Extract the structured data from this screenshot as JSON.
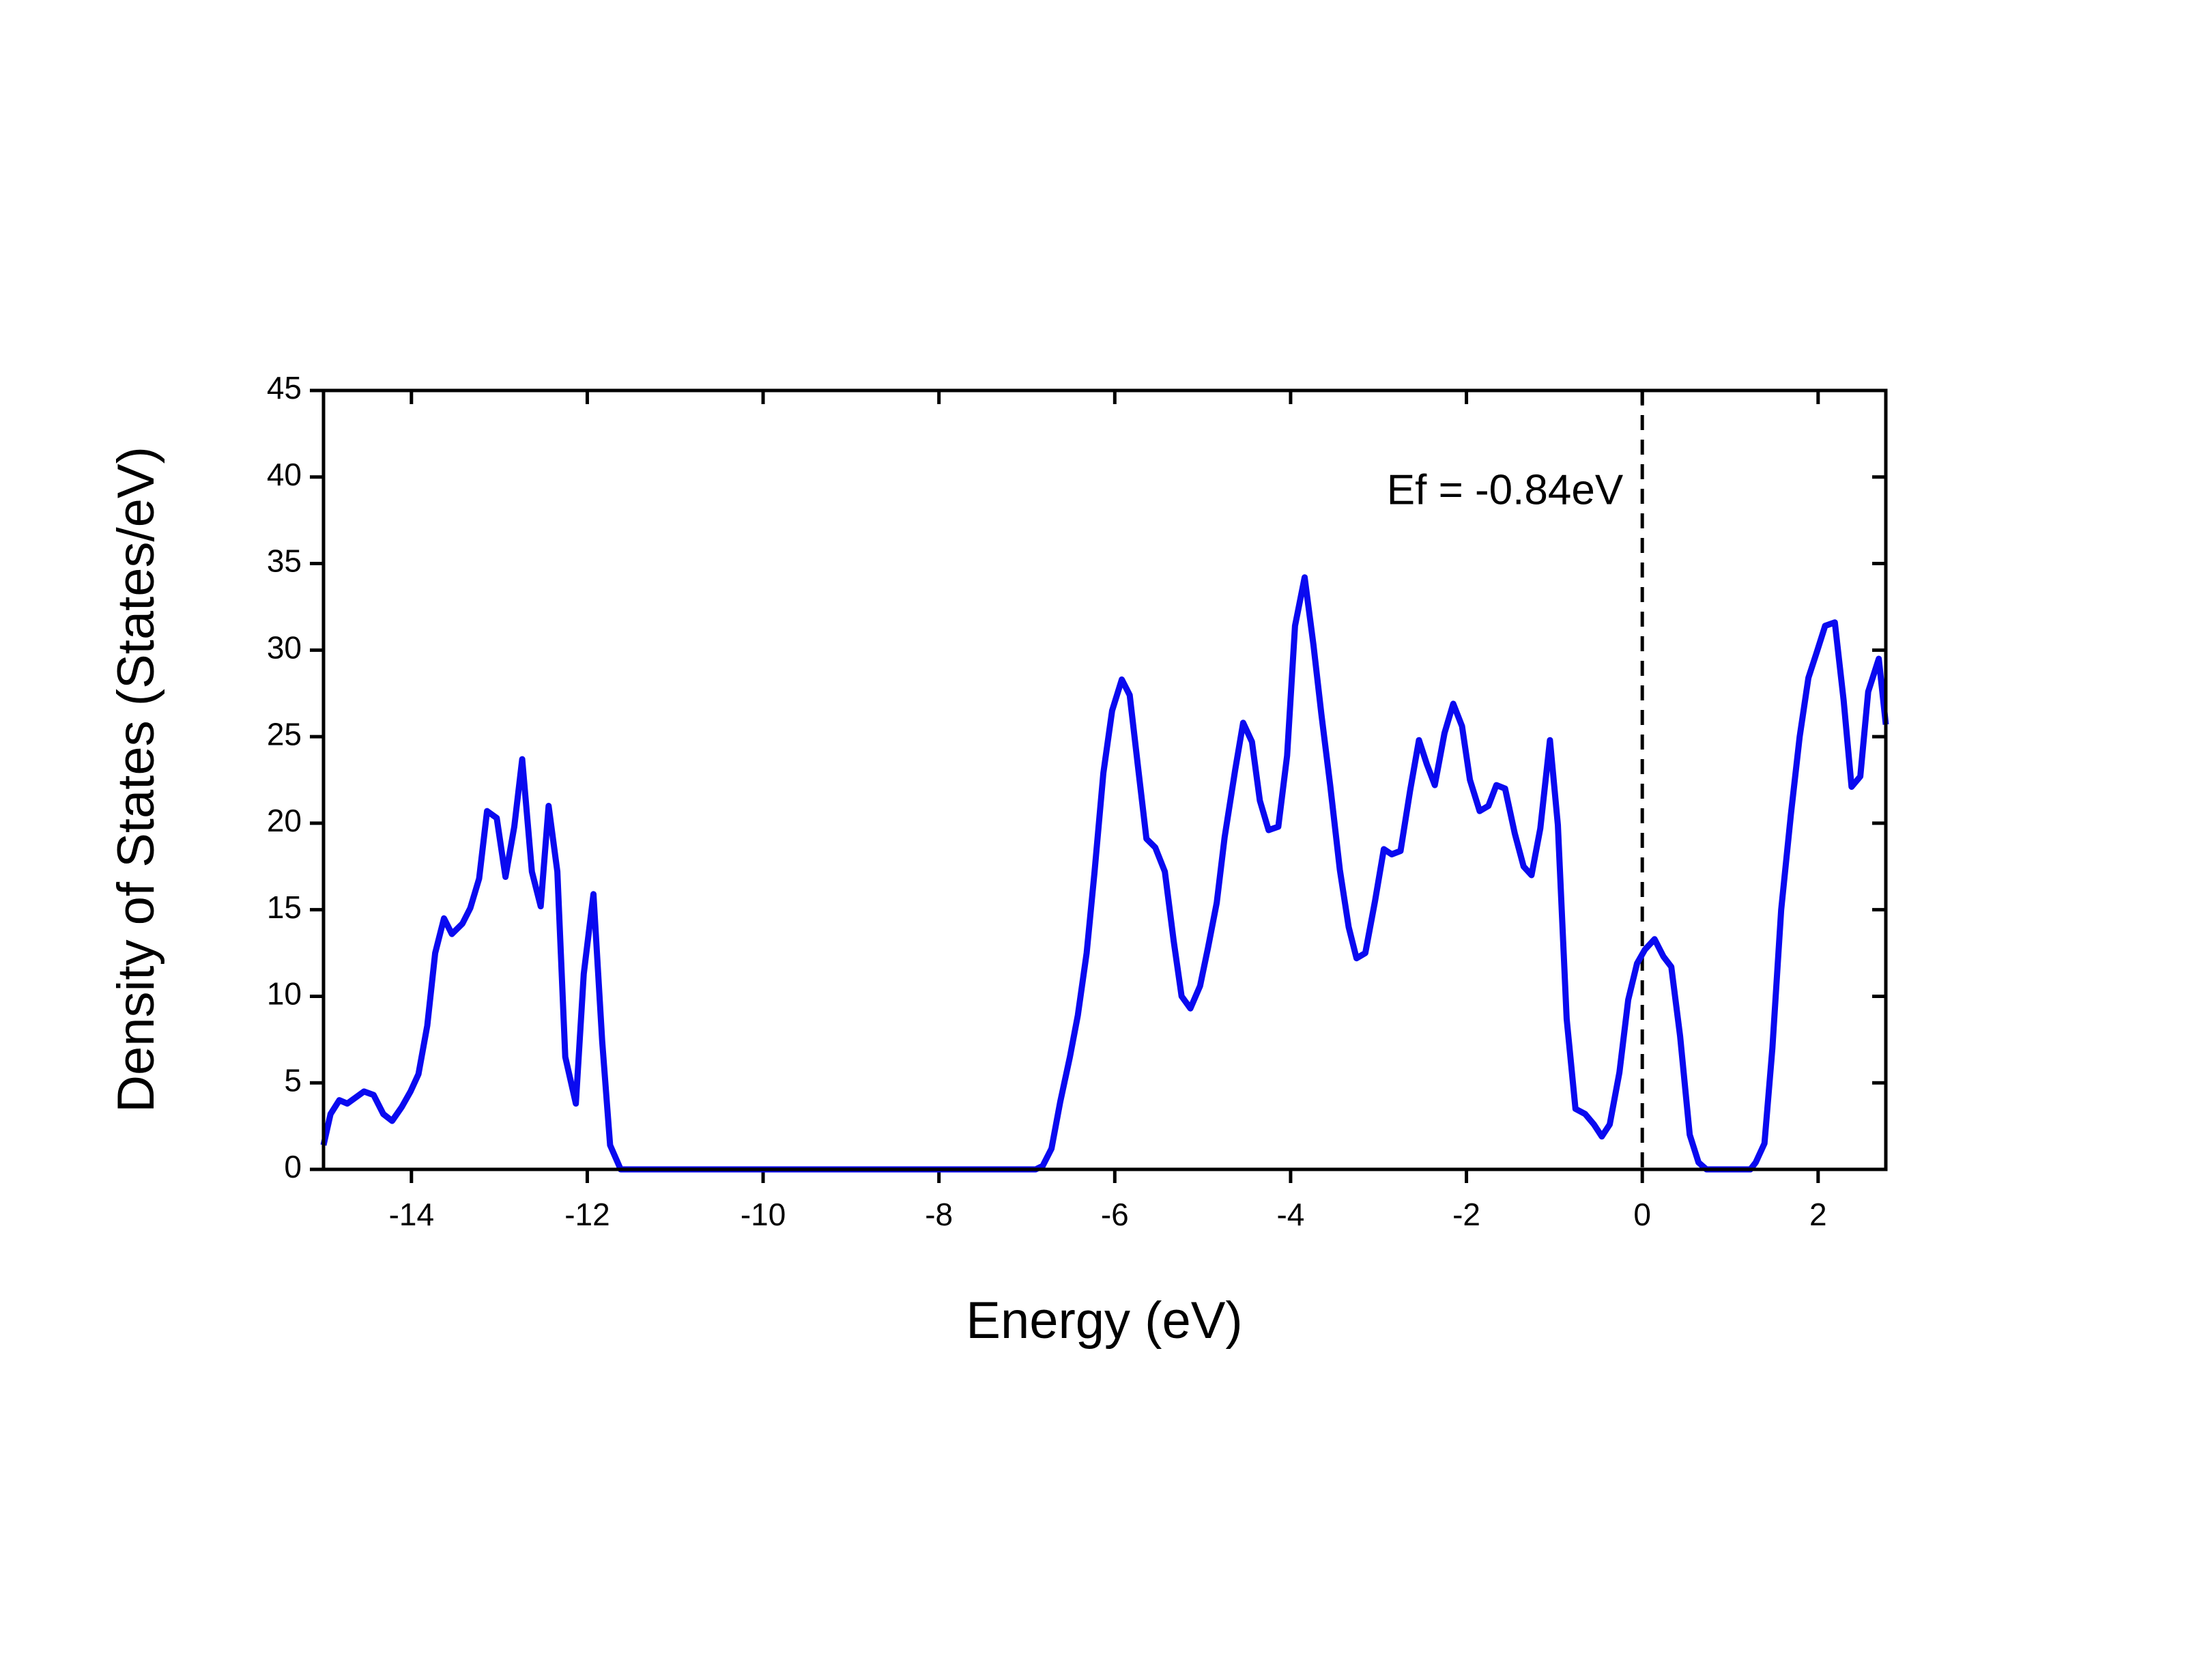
{
  "chart_data": {
    "type": "line",
    "x_label": "Energy (eV)",
    "y_label": "Density of States (States/eV)",
    "annotation": "Ef = -0.84eV",
    "reference_line_x": 0,
    "color": "#0a0af0",
    "x": [
      -15,
      -14.92,
      -14.82,
      -14.73,
      -14.54,
      -14.43,
      -14.32,
      -14.22,
      -14.11,
      -14.01,
      -13.92,
      -13.82,
      -13.73,
      -13.63,
      -13.54,
      -13.42,
      -13.33,
      -13.23,
      -13.14,
      -13.03,
      -12.93,
      -12.83,
      -12.74,
      -12.63,
      -12.53,
      -12.44,
      -12.34,
      -12.25,
      -12.13,
      -12.04,
      -11.93,
      -11.83,
      -11.74,
      -11.62,
      -6.9,
      -6.82,
      -6.72,
      -6.62,
      -6.51,
      -6.42,
      -6.32,
      -6.23,
      -6.13,
      -6.03,
      -5.92,
      -5.83,
      -5.73,
      -5.64,
      -5.54,
      -5.43,
      -5.33,
      -5.24,
      -5.14,
      -5.03,
      -4.94,
      -4.84,
      -4.75,
      -4.63,
      -4.54,
      -4.44,
      -4.35,
      -4.25,
      -4.14,
      -4.04,
      -3.95,
      -3.84,
      -3.74,
      -3.65,
      -3.55,
      -3.44,
      -3.34,
      -3.25,
      -3.15,
      -3.04,
      -2.94,
      -2.85,
      -2.75,
      -2.64,
      -2.54,
      -2.45,
      -2.36,
      -2.25,
      -2.15,
      -2.05,
      -1.96,
      -1.85,
      -1.75,
      -1.66,
      -1.56,
      -1.45,
      -1.35,
      -1.26,
      -1.16,
      -1.05,
      -0.96,
      -0.86,
      -0.76,
      -0.65,
      -0.55,
      -0.46,
      -0.37,
      -0.26,
      -0.16,
      -0.06,
      0.03,
      0.14,
      0.24,
      0.33,
      0.43,
      0.54,
      0.64,
      0.73,
      1.23,
      1.29,
      1.39,
      1.48,
      1.58,
      1.69,
      1.79,
      1.89,
      1.98,
      2.08,
      2.19,
      2.29,
      2.38,
      2.48,
      2.57,
      2.69,
      2.77
    ],
    "values": [
      1.4,
      3.2,
      4.0,
      3.8,
      4.5,
      4.3,
      3.2,
      2.8,
      3.6,
      4.5,
      5.5,
      8.3,
      12.5,
      14.5,
      13.6,
      14.2,
      15.1,
      16.8,
      20.7,
      20.3,
      16.9,
      19.8,
      23.7,
      17.2,
      15.2,
      21.0,
      17.2,
      6.5,
      3.8,
      11.3,
      15.9,
      7.4,
      1.4,
      0,
      0,
      0.2,
      1.2,
      3.9,
      6.5,
      8.9,
      12.5,
      17.2,
      22.9,
      26.5,
      28.3,
      27.4,
      23.0,
      19.1,
      18.6,
      17.2,
      13.2,
      10.0,
      9.3,
      10.6,
      12.8,
      15.4,
      19.2,
      23.1,
      25.8,
      24.7,
      21.3,
      19.6,
      19.8,
      23.9,
      31.4,
      34.2,
      30.3,
      26.3,
      22.2,
      17.3,
      14.0,
      12.2,
      12.5,
      15.5,
      18.5,
      18.2,
      18.4,
      21.9,
      24.8,
      23.4,
      22.2,
      25.2,
      26.9,
      25.6,
      22.5,
      20.7,
      21.0,
      22.2,
      22.0,
      19.4,
      17.5,
      17.0,
      19.7,
      24.8,
      19.9,
      8.7,
      3.5,
      3.2,
      2.6,
      1.9,
      2.6,
      5.6,
      9.8,
      11.9,
      12.7,
      13.3,
      12.3,
      11.7,
      7.7,
      2.0,
      0.4,
      0,
      0,
      0.4,
      1.5,
      7.0,
      15.0,
      20.5,
      25.0,
      28.4,
      29.8,
      31.4,
      31.6,
      27.1,
      22.1,
      22.7,
      27.6,
      29.5,
      25.7
    ],
    "xlim": [
      -15,
      2.77
    ],
    "xticks": [
      -14,
      -12,
      -10,
      -8,
      -6,
      -4,
      -2,
      0,
      2
    ],
    "ylim": [
      0,
      45
    ],
    "yticks": [
      0,
      5,
      10,
      15,
      20,
      25,
      30,
      35,
      40,
      45
    ]
  }
}
